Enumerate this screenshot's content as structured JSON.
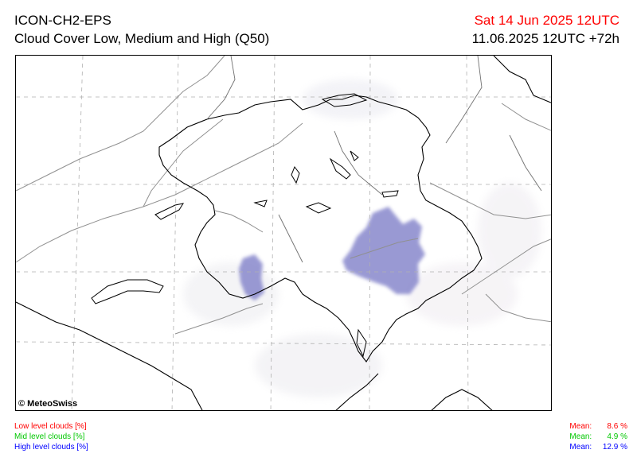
{
  "header": {
    "model": "ICON-CH2-EPS",
    "product": "Cloud Cover Low, Medium and High (Q50)",
    "valid_time": "Sat 14 Jun 2025 12UTC",
    "run_time": "11.06.2025 12UTC +72h"
  },
  "map": {
    "copyright": "© MeteoSwiss",
    "cloud_color": "#8888cc"
  },
  "legend": {
    "low": {
      "label": "Low level clouds [%]",
      "mean_label": "Mean:",
      "mean_value": "8.6 %",
      "color": "#ff0000"
    },
    "mid": {
      "label": "Mid level clouds [%]",
      "mean_label": "Mean:",
      "mean_value": "4.9 %",
      "color": "#00c800"
    },
    "high": {
      "label": "High level clouds [%]",
      "mean_label": "Mean:",
      "mean_value": "12.9 %",
      "color": "#0000ff"
    }
  }
}
